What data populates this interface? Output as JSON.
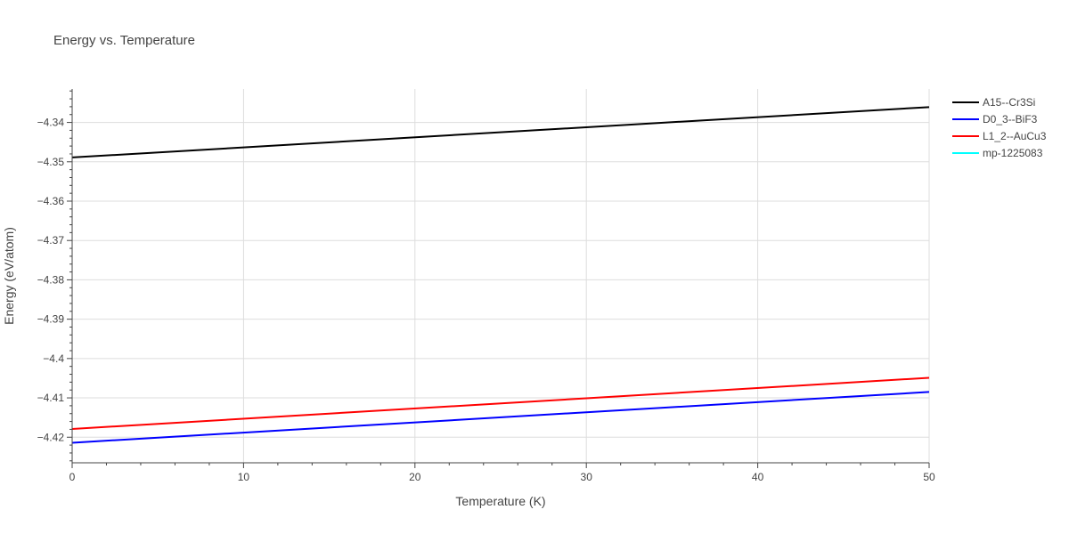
{
  "chart_data": {
    "type": "line",
    "title": "Energy vs. Temperature",
    "xlabel": "Temperature (K)",
    "ylabel": "Energy (eV/atom)",
    "xlim": [
      0,
      50
    ],
    "ylim": [
      -4.4265,
      -4.3315
    ],
    "x_ticks": [
      0,
      10,
      20,
      30,
      40,
      50
    ],
    "x_tick_labels": [
      "0",
      "10",
      "20",
      "30",
      "40",
      "50"
    ],
    "y_ticks": [
      -4.34,
      -4.35,
      -4.36,
      -4.37,
      -4.38,
      -4.39,
      -4.4,
      -4.41,
      -4.42
    ],
    "y_tick_labels": [
      "−4.34",
      "−4.35",
      "−4.36",
      "−4.37",
      "−4.38",
      "−4.39",
      "−4.4",
      "−4.41",
      "−4.42"
    ],
    "grid": true,
    "legend_position": "top-right, outside plot",
    "series": [
      {
        "name": "A15--Cr3Si",
        "color": "#000000",
        "x": [
          0,
          50
        ],
        "y": [
          -4.3489,
          -4.3361
        ]
      },
      {
        "name": "D0_3--BiF3",
        "color": "#0000ff",
        "x": [
          0,
          50
        ],
        "y": [
          -4.4214,
          -4.4085
        ]
      },
      {
        "name": "L1_2--AuCu3",
        "color": "#ff0000",
        "x": [
          0,
          50
        ],
        "y": [
          -4.4179,
          -4.4049
        ]
      },
      {
        "name": "mp-1225083",
        "color": "#00ffff",
        "x": [],
        "y": []
      }
    ]
  }
}
